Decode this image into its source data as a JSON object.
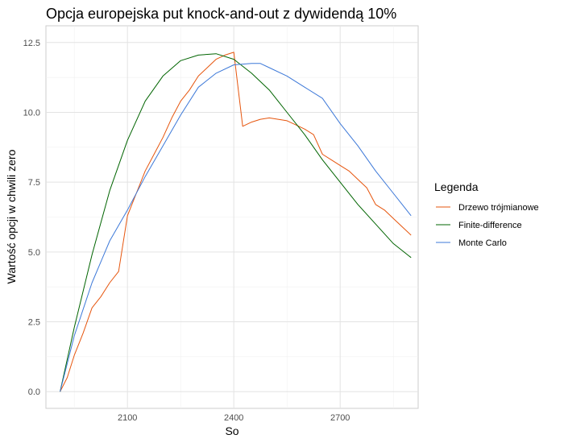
{
  "chart_data": {
    "type": "line",
    "title": "Opcja europejska put knock-and-out z dywidendą 10%",
    "xlabel": "So",
    "ylabel": "Wartość opcji w chwili zero",
    "xlim": [
      1870,
      2920
    ],
    "ylim": [
      -0.6,
      13.1
    ],
    "x_ticks": [
      2100,
      2400,
      2700
    ],
    "y_ticks": [
      0.0,
      2.5,
      5.0,
      7.5,
      10.0,
      12.5
    ],
    "y_tick_labels": [
      "0.0",
      "2.5",
      "5.0",
      "7.5",
      "10.0",
      "12.5"
    ],
    "grid": true,
    "legend": {
      "title": "Legenda",
      "position": "right"
    },
    "series": [
      {
        "name": "Drzewo trójmianowe",
        "color": "#E6550D",
        "x": [
          1910,
          1930,
          1950,
          1975,
          2000,
          2025,
          2050,
          2075,
          2100,
          2125,
          2150,
          2175,
          2200,
          2225,
          2250,
          2275,
          2300,
          2325,
          2350,
          2375,
          2400,
          2425,
          2450,
          2475,
          2500,
          2525,
          2550,
          2575,
          2600,
          2625,
          2650,
          2675,
          2700,
          2725,
          2750,
          2775,
          2800,
          2825,
          2850,
          2875,
          2900
        ],
        "y": [
          0.0,
          0.5,
          1.3,
          2.1,
          3.0,
          3.4,
          3.9,
          4.3,
          6.3,
          7.1,
          7.9,
          8.5,
          9.1,
          9.8,
          10.4,
          10.8,
          11.3,
          11.6,
          11.9,
          12.05,
          12.15,
          9.5,
          9.65,
          9.75,
          9.8,
          9.75,
          9.7,
          9.55,
          9.4,
          9.2,
          8.5,
          8.3,
          8.1,
          7.9,
          7.6,
          7.3,
          6.7,
          6.5,
          6.2,
          5.9,
          5.6
        ]
      },
      {
        "name": "Finite-difference",
        "color": "#006400",
        "x": [
          1910,
          1950,
          2000,
          2050,
          2100,
          2150,
          2200,
          2250,
          2300,
          2350,
          2400,
          2450,
          2500,
          2550,
          2600,
          2650,
          2700,
          2750,
          2800,
          2850,
          2900
        ],
        "y": [
          0.0,
          2.3,
          4.9,
          7.2,
          9.0,
          10.4,
          11.3,
          11.85,
          12.05,
          12.1,
          11.9,
          11.4,
          10.8,
          10.0,
          9.2,
          8.3,
          7.5,
          6.7,
          6.0,
          5.3,
          4.8
        ]
      },
      {
        "name": "Monte Carlo",
        "color": "#3C78D8",
        "x": [
          1910,
          1950,
          2000,
          2050,
          2100,
          2150,
          2200,
          2250,
          2300,
          2350,
          2400,
          2450,
          2475,
          2500,
          2550,
          2600,
          2650,
          2700,
          2750,
          2800,
          2850,
          2900
        ],
        "y": [
          0.0,
          2.0,
          3.9,
          5.4,
          6.5,
          7.7,
          8.8,
          9.9,
          10.9,
          11.4,
          11.7,
          11.75,
          11.75,
          11.6,
          11.3,
          10.9,
          10.5,
          9.6,
          8.8,
          7.9,
          7.1,
          6.3
        ]
      }
    ]
  }
}
